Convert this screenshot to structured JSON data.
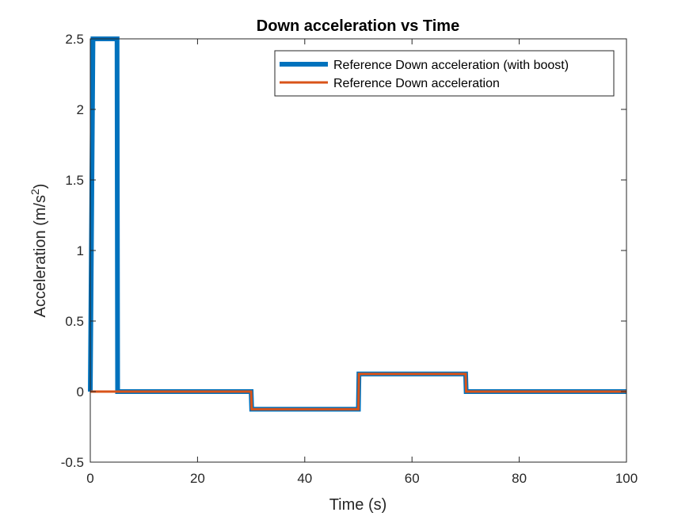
{
  "chart_data": {
    "type": "line",
    "title": "Down acceleration vs Time",
    "xlabel": "Time (s)",
    "ylabel_main": "Acceleration (m/s",
    "ylabel_sup": "2",
    "ylabel_close": ")",
    "xlim": [
      0,
      100
    ],
    "ylim": [
      -0.5,
      2.5
    ],
    "xticks": [
      0,
      20,
      40,
      60,
      80,
      100
    ],
    "xtick_labels": [
      "0",
      "20",
      "40",
      "60",
      "80",
      "100"
    ],
    "yticks": [
      -0.5,
      0,
      0.5,
      1,
      1.5,
      2,
      2.5
    ],
    "ytick_labels": [
      "-0.5",
      "0",
      "0.5",
      "1",
      "1.5",
      "2",
      "2.5"
    ],
    "grid": false,
    "legend_position": "top-right",
    "series": [
      {
        "name": "Reference Down acceleration (with boost)",
        "color": "#0072BD",
        "x": [
          0,
          0.5,
          5,
          5.1,
          30,
          30.1,
          50,
          50.1,
          70,
          70.1,
          100
        ],
        "y": [
          0,
          2.5,
          2.5,
          0,
          0,
          -0.125,
          -0.125,
          0.125,
          0.125,
          0,
          0
        ]
      },
      {
        "name": "Reference Down acceleration",
        "color": "#D95319",
        "x": [
          0,
          30,
          30.1,
          50,
          50.1,
          70,
          70.1,
          100
        ],
        "y": [
          0,
          0,
          -0.125,
          -0.125,
          0.125,
          0.125,
          0,
          0
        ]
      }
    ]
  }
}
